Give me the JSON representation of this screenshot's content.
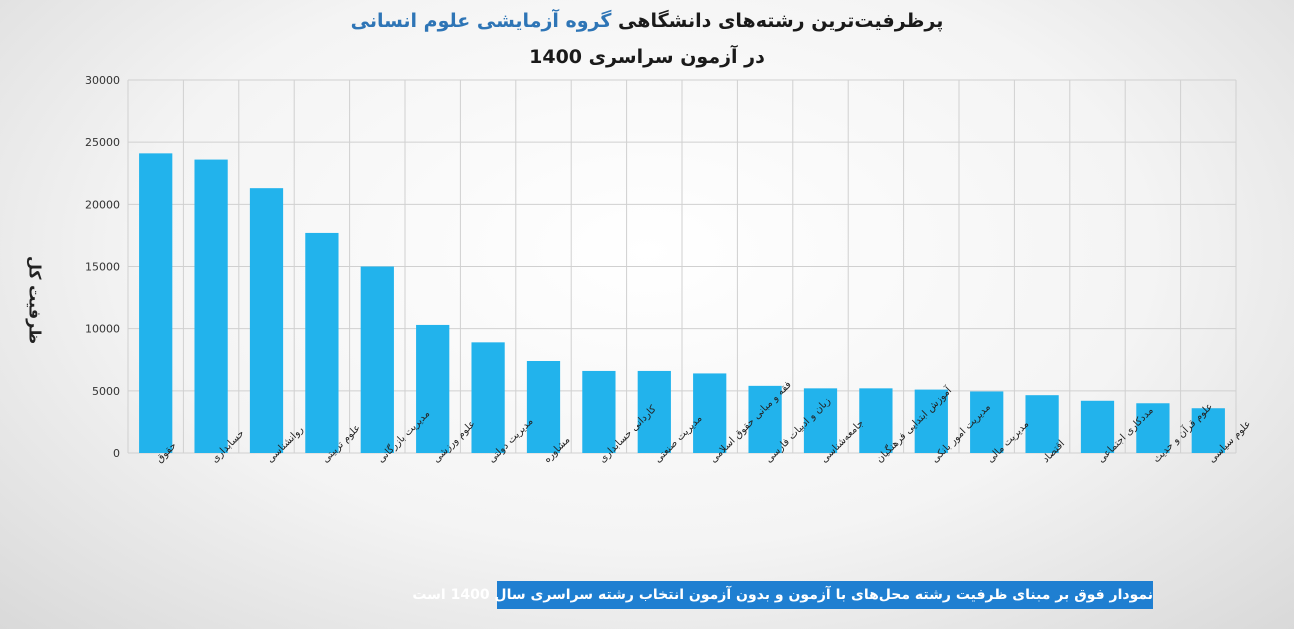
{
  "title": {
    "line1_part1": "پرظرفیت‌ترین رشته‌های دانشگاهی",
    "line1_part2": "گروه آزمایشی علوم انسانی",
    "line2": "در آزمون سراسری 1400"
  },
  "footnote": "نمودار فوق بر مبنای ظرفیت رشته محل‌های با آزمون و بدون آزمون انتخاب رشته سراسری سال 1400 است",
  "colors": {
    "bar": "#22b3ec",
    "grid": "#d0d0d0",
    "title_highlight": "#2e75b6",
    "footnote_bg": "#1f7fd1"
  },
  "chart_data": {
    "type": "bar",
    "title": "پرظرفیت‌ترین رشته‌های دانشگاهی گروه آزمایشی علوم انسانی در آزمون سراسری 1400",
    "ylabel": "ظرفیت کل",
    "xlabel": "",
    "ylim": [
      0,
      30000
    ],
    "yticks": [
      "0",
      "5000",
      "10000",
      "15000",
      "20000",
      "25000",
      "30000"
    ],
    "grid": true,
    "categories": [
      "حقوق",
      "حسابداری",
      "روانشناسی",
      "علوم تربیتی",
      "مدیریت بازرگانی",
      "علوم ورزشی",
      "مدیریت دولتی",
      "مشاوره",
      "کاردانی حسابداری",
      "مدیریت صنعتی",
      "فقه و مبانی حقوق اسلامی",
      "زبان و ادبیات فارسی",
      "جامعه‌شناسی",
      "آموزش ابتدایی فرهنگیان",
      "مدیریت امور بانکی",
      "مدیریت مالی",
      "اقتصاد",
      "مددکاری اجتماعی",
      "علوم قرآن و حدیث",
      "علوم سیاسی"
    ],
    "values": [
      24100,
      23600,
      21300,
      17700,
      15000,
      10300,
      8900,
      7400,
      6600,
      6600,
      6400,
      5400,
      5200,
      5200,
      5100,
      4950,
      4650,
      4200,
      4000,
      3600
    ]
  }
}
